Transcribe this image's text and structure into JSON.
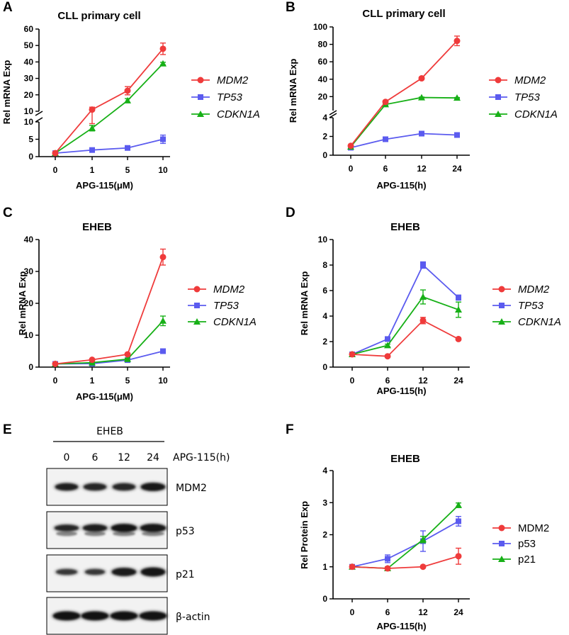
{
  "colors": {
    "MDM2": "#ef3b3b",
    "TP53": "#5b5bef",
    "CDKN1A": "#17b017",
    "axis": "#000000"
  },
  "chart_data": [
    {
      "panel": "A",
      "type": "line",
      "title": "CLL primary cell",
      "xlabel": "APG-115(μM)",
      "ylabel": "Rel mRNA Exp",
      "categories": [
        "0",
        "1",
        "5",
        "10"
      ],
      "broken_axis": true,
      "ylim_lower": [
        0,
        10
      ],
      "ylim_upper": [
        10,
        60
      ],
      "yticks_lower": [
        "0",
        "5",
        "10"
      ],
      "yticks_upper": [
        "10",
        "20",
        "30",
        "40",
        "50",
        "60"
      ],
      "series": [
        {
          "name": "MDM2",
          "values": [
            1,
            11,
            22.5,
            48
          ],
          "errors": [
            0,
            1.5,
            2.5,
            3.5
          ]
        },
        {
          "name": "TP53",
          "values": [
            1,
            1.9,
            2.5,
            5
          ],
          "errors": [
            0,
            0.3,
            0.4,
            1.2
          ]
        },
        {
          "name": "CDKN1A",
          "values": [
            1,
            8.2,
            16.5,
            39
          ],
          "errors": [
            0,
            0.8,
            1.2,
            0.8
          ]
        }
      ],
      "legend": [
        "MDM2",
        "TP53",
        "CDKN1A"
      ]
    },
    {
      "panel": "B",
      "type": "line",
      "title": "CLL primary cell",
      "xlabel": "APG-115(h)",
      "ylabel": "Rel mRNA Exp",
      "categories": [
        "0",
        "6",
        "12",
        "24"
      ],
      "broken_axis": true,
      "ylim_lower": [
        0,
        4
      ],
      "ylim_upper": [
        4,
        100
      ],
      "yticks_lower": [
        "0",
        "2",
        "4"
      ],
      "yticks_upper": [
        "20",
        "40",
        "60",
        "80",
        "100"
      ],
      "series": [
        {
          "name": "MDM2",
          "values": [
            1,
            14,
            41,
            84
          ],
          "errors": [
            0,
            1,
            1.5,
            5.5
          ]
        },
        {
          "name": "TP53",
          "values": [
            0.8,
            1.7,
            2.3,
            2.15
          ],
          "errors": [
            0,
            0.1,
            0.15,
            0.15
          ]
        },
        {
          "name": "CDKN1A",
          "values": [
            0.9,
            11,
            19,
            18.5
          ],
          "errors": [
            0,
            1,
            0.5,
            0.5
          ]
        }
      ],
      "legend": [
        "MDM2",
        "TP53",
        "CDKN1A"
      ]
    },
    {
      "panel": "C",
      "type": "line",
      "title": "EHEB",
      "xlabel": "APG-115(μM)",
      "ylabel": "Rel mRNA Exp",
      "categories": [
        "0",
        "1",
        "5",
        "10"
      ],
      "ylim": [
        0,
        40
      ],
      "yticks": [
        "0",
        "10",
        "20",
        "30",
        "40"
      ],
      "series": [
        {
          "name": "MDM2",
          "values": [
            1,
            2.3,
            4,
            34.5
          ],
          "errors": [
            0,
            0.3,
            0.4,
            2.5
          ]
        },
        {
          "name": "TP53",
          "values": [
            1,
            1.1,
            2.2,
            5
          ],
          "errors": [
            0,
            0.1,
            0.3,
            0.5
          ]
        },
        {
          "name": "CDKN1A",
          "values": [
            1,
            1.4,
            2.5,
            14.5
          ],
          "errors": [
            0,
            0.2,
            0.3,
            1.5
          ]
        }
      ],
      "legend": [
        "MDM2",
        "TP53",
        "CDKN1A"
      ]
    },
    {
      "panel": "D",
      "type": "line",
      "title": "EHEB",
      "xlabel": "APG-115(h)",
      "ylabel": "Rel mRNA Exp",
      "categories": [
        "0",
        "6",
        "12",
        "24"
      ],
      "ylim": [
        0,
        10
      ],
      "yticks": [
        "0",
        "2",
        "4",
        "6",
        "8",
        "10"
      ],
      "series": [
        {
          "name": "MDM2",
          "values": [
            1,
            0.85,
            3.65,
            2.2
          ],
          "errors": [
            0,
            0.05,
            0.25,
            0.1
          ]
        },
        {
          "name": "TP53",
          "values": [
            1,
            2.2,
            8,
            5.45
          ],
          "errors": [
            0,
            0.1,
            0.25,
            0.2
          ]
        },
        {
          "name": "CDKN1A",
          "values": [
            1,
            1.7,
            5.5,
            4.5
          ],
          "errors": [
            0,
            0.1,
            0.55,
            0.6
          ]
        }
      ],
      "legend": [
        "MDM2",
        "TP53",
        "CDKN1A"
      ]
    },
    {
      "panel": "F",
      "type": "line",
      "title": "EHEB",
      "xlabel": "APG-115(h)",
      "ylabel": "Rel Protein Exp",
      "categories": [
        "0",
        "6",
        "12",
        "24"
      ],
      "ylim": [
        0,
        4
      ],
      "yticks": [
        "0",
        "1",
        "2",
        "3",
        "4"
      ],
      "series": [
        {
          "name": "MDM2",
          "values": [
            1,
            0.95,
            1,
            1.33
          ],
          "errors": [
            0.05,
            0.05,
            0.03,
            0.25
          ]
        },
        {
          "name": "p53",
          "values": [
            1,
            1.25,
            1.8,
            2.42
          ],
          "errors": [
            0.05,
            0.12,
            0.32,
            0.15
          ]
        },
        {
          "name": "p21",
          "values": [
            1,
            0.95,
            1.85,
            2.92
          ],
          "errors": [
            0.03,
            0.05,
            0.1,
            0.07
          ]
        }
      ],
      "legend": [
        "MDM2",
        "p53",
        "p21"
      ]
    }
  ],
  "panel_letters": [
    "A",
    "B",
    "C",
    "D",
    "E",
    "F"
  ],
  "blot": {
    "panel": "E",
    "cell_line": "EHEB",
    "treatment_label": "APG-115(h)",
    "lanes": [
      "0",
      "6",
      "12",
      "24"
    ],
    "rows": [
      "MDM2",
      "p53",
      "p21",
      "β-actin"
    ]
  }
}
